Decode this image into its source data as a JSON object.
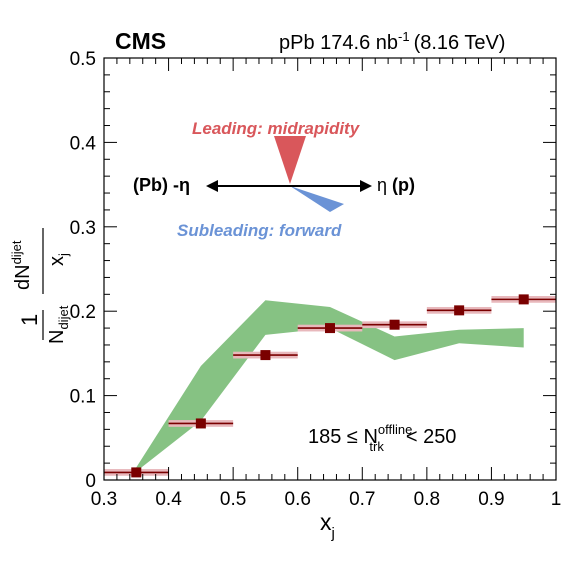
{
  "chart_data": {
    "type": "scatter",
    "experiment": "CMS",
    "run_label": "pPb 174.6 nb",
    "run_label_sup": "-1",
    "energy_label": "(8.16 TeV)",
    "xlabel": "x",
    "xlabel_sub": "j",
    "ylabel": {
      "num_prefix": "1",
      "num_main": "dN",
      "num_sub": "dijet",
      "den_prefix": "N",
      "den_sub": "dijet",
      "den_main": "x",
      "den_main_sub": "j"
    },
    "xlim": [
      0.3,
      1.0
    ],
    "ylim": [
      0.0,
      0.5
    ],
    "x_ticks": [
      "0.3",
      "0.4",
      "0.5",
      "0.6",
      "0.7",
      "0.8",
      "0.9",
      "1"
    ],
    "y_ticks": [
      "0",
      "0.1",
      "0.2",
      "0.3",
      "0.4",
      "0.5"
    ],
    "data_points": {
      "color": "#7a0000",
      "syst_color": "#e8b8bc",
      "points": [
        {
          "x": 0.35,
          "y": 0.009
        },
        {
          "x": 0.45,
          "y": 0.067
        },
        {
          "x": 0.55,
          "y": 0.148
        },
        {
          "x": 0.65,
          "y": 0.18
        },
        {
          "x": 0.75,
          "y": 0.184
        },
        {
          "x": 0.85,
          "y": 0.201
        },
        {
          "x": 0.95,
          "y": 0.214
        }
      ]
    },
    "band": {
      "color": "#86c283",
      "x": [
        0.35,
        0.45,
        0.55,
        0.65,
        0.75,
        0.85,
        0.95
      ],
      "upper": [
        0.015,
        0.135,
        0.213,
        0.205,
        0.17,
        0.178,
        0.18
      ],
      "lower": [
        0.01,
        0.07,
        0.172,
        0.18,
        0.142,
        0.162,
        0.157
      ]
    },
    "diagram": {
      "leading_label": "Leading: midrapidity",
      "leading_color": "#d9575b",
      "subleading_label": "Subleading: forward",
      "subleading_color": "#6b93d6",
      "left_label": "(Pb) -η",
      "right_label_sym": "η",
      "right_label_text": "(p)"
    },
    "selection": {
      "text": "185 ≤ N",
      "sup": "offline",
      "sub": "trk",
      "tail": "< 250"
    }
  }
}
